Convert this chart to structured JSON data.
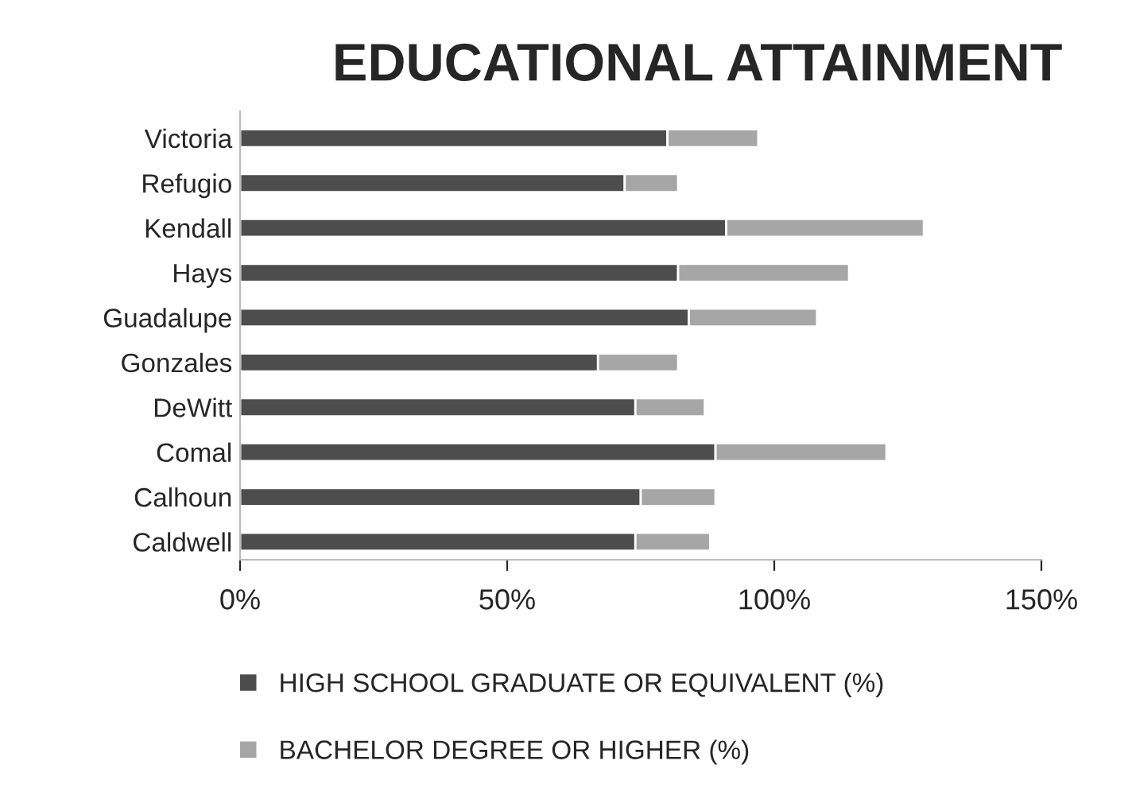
{
  "chart_data": {
    "type": "bar",
    "orientation": "horizontal",
    "stacked": true,
    "title": "EDUCATIONAL ATTAINMENT",
    "categories": [
      "Victoria",
      "Refugio",
      "Kendall",
      "Hays",
      "Guadalupe",
      "Gonzales",
      "DeWitt",
      "Comal",
      "Calhoun",
      "Caldwell"
    ],
    "series": [
      {
        "name": "HIGH SCHOOL GRADUATE OR EQUIVALENT (%)",
        "color": "#4d4d4d",
        "values": [
          80,
          72,
          91,
          82,
          84,
          67,
          74,
          89,
          75,
          74
        ]
      },
      {
        "name": "BACHELOR DEGREE OR HIGHER (%)",
        "color": "#a6a6a6",
        "values": [
          17,
          10,
          37,
          32,
          24,
          15,
          13,
          32,
          14,
          14
        ]
      }
    ],
    "xlim": [
      0,
      150
    ],
    "xticks": [
      {
        "value": 0,
        "label": "0%"
      },
      {
        "value": 50,
        "label": "50%"
      },
      {
        "value": 100,
        "label": "100%"
      },
      {
        "value": 150,
        "label": "150%"
      }
    ],
    "grid": false,
    "legend": "bottom"
  }
}
